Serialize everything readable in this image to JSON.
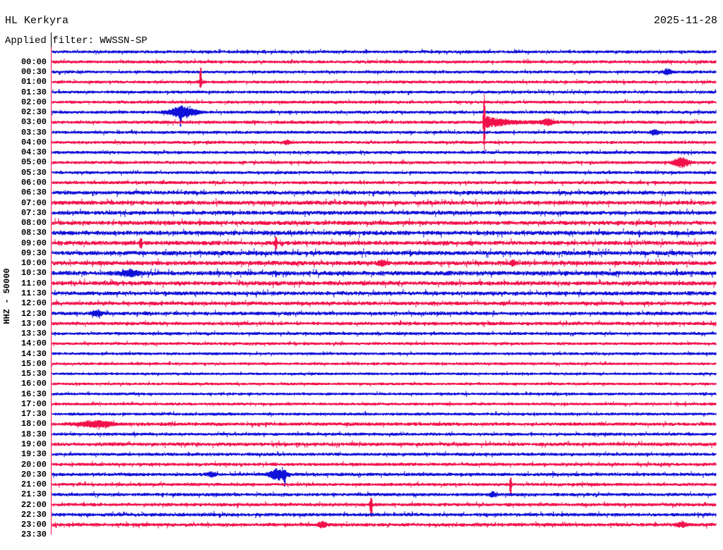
{
  "header": {
    "title": "HL Kerkyra",
    "date": "2025-11-28",
    "filter_label": "Applied filter: WWSSN-SP"
  },
  "axis": {
    "left_label": "HHZ - 50000"
  },
  "colors": {
    "trace_red": "#f2114b",
    "trace_blue": "#0f10d8",
    "text": "#000000",
    "background": "#ffffff",
    "plot_border": "#f2114b",
    "header_separator": "#000000"
  },
  "chart_data": {
    "type": "helicorder",
    "station": "HL Kerkyra",
    "date": "2025-11-28",
    "channel_scale_label": "HHZ - 50000",
    "filter": "WWSSN-SP",
    "minutes_per_row": 30,
    "legend_position": "none",
    "grid": false,
    "time_labels": [
      "00:00",
      "00:30",
      "01:00",
      "01:30",
      "02:00",
      "02:30",
      "03:00",
      "03:30",
      "04:00",
      "04:30",
      "05:00",
      "05:30",
      "06:00",
      "06:30",
      "07:00",
      "07:30",
      "08:00",
      "08:30",
      "09:00",
      "09:30",
      "10:00",
      "10:30",
      "11:00",
      "11:30",
      "12:00",
      "12:30",
      "13:00",
      "13:30",
      "14:00",
      "14:30",
      "15:00",
      "15:30",
      "16:00",
      "16:30",
      "17:00",
      "17:30",
      "18:00",
      "18:30",
      "19:00",
      "19:30",
      "20:00",
      "20:30",
      "21:00",
      "21:30",
      "22:00",
      "22:30",
      "23:00",
      "23:30"
    ],
    "traces": [
      {
        "row": 0,
        "color": "blue",
        "noise": 1.6,
        "events": []
      },
      {
        "row": 1,
        "color": "red",
        "noise": 1.6,
        "events": []
      },
      {
        "row": 2,
        "color": "blue",
        "noise": 1.5,
        "events": [
          {
            "shape": "burst",
            "t": 27.8,
            "a": 4,
            "w": 4
          }
        ]
      },
      {
        "row": 3,
        "color": "red",
        "noise": 1.5,
        "events": [
          {
            "shape": "spike",
            "t": 6.7,
            "au": 18,
            "ad": 5,
            "w": 1.3
          },
          {
            "shape": "burst",
            "t": 6.7,
            "a": 2.5,
            "w": 3
          }
        ]
      },
      {
        "row": 4,
        "color": "blue",
        "noise": 1.5,
        "events": []
      },
      {
        "row": 5,
        "color": "red",
        "noise": 1.5,
        "events": []
      },
      {
        "row": 6,
        "color": "blue",
        "noise": 1.6,
        "events": [
          {
            "shape": "burst",
            "t": 5.9,
            "a": 8,
            "w": 13
          },
          {
            "shape": "spike",
            "t": 5.8,
            "au": 2,
            "ad": 14,
            "w": 1
          }
        ]
      },
      {
        "row": 7,
        "color": "red",
        "noise": 1.7,
        "events": [
          {
            "shape": "quake",
            "t": 19.5,
            "a": 30,
            "w": 1.3,
            "coda_a": 9,
            "coda_len": 28
          },
          {
            "shape": "burst",
            "t": 22.4,
            "a": 4,
            "w": 6
          }
        ]
      },
      {
        "row": 8,
        "color": "blue",
        "noise": 1.6,
        "events": [
          {
            "shape": "burst",
            "t": 27.2,
            "a": 3.5,
            "w": 4
          }
        ]
      },
      {
        "row": 9,
        "color": "red",
        "noise": 1.5,
        "events": [
          {
            "shape": "burst",
            "t": 10.6,
            "a": 3,
            "w": 3
          }
        ]
      },
      {
        "row": 10,
        "color": "blue",
        "noise": 1.6,
        "events": []
      },
      {
        "row": 11,
        "color": "red",
        "noise": 1.6,
        "events": [
          {
            "shape": "burst",
            "t": 28.4,
            "a": 7,
            "w": 7
          }
        ]
      },
      {
        "row": 12,
        "color": "blue",
        "noise": 1.6,
        "events": []
      },
      {
        "row": 13,
        "color": "red",
        "noise": 1.8,
        "events": []
      },
      {
        "row": 14,
        "color": "blue",
        "noise": 2.2,
        "events": []
      },
      {
        "row": 15,
        "color": "red",
        "noise": 2.4,
        "events": []
      },
      {
        "row": 16,
        "color": "blue",
        "noise": 2.3,
        "events": []
      },
      {
        "row": 17,
        "color": "red",
        "noise": 2.5,
        "events": []
      },
      {
        "row": 18,
        "color": "blue",
        "noise": 2.6,
        "events": []
      },
      {
        "row": 19,
        "color": "red",
        "noise": 2.5,
        "events": [
          {
            "shape": "spike",
            "t": 4.0,
            "au": 6,
            "ad": 6,
            "w": 1.5
          },
          {
            "shape": "spike",
            "t": 10.1,
            "au": 7,
            "ad": 7,
            "w": 1.5
          }
        ]
      },
      {
        "row": 20,
        "color": "blue",
        "noise": 2.6,
        "events": []
      },
      {
        "row": 21,
        "color": "red",
        "noise": 2.5,
        "events": [
          {
            "shape": "burst",
            "t": 14.9,
            "a": 4,
            "w": 4
          },
          {
            "shape": "burst",
            "t": 20.8,
            "a": 3.5,
            "w": 3
          }
        ]
      },
      {
        "row": 22,
        "color": "blue",
        "noise": 2.6,
        "events": [
          {
            "shape": "burst",
            "t": 3.5,
            "a": 4.5,
            "w": 9
          }
        ]
      },
      {
        "row": 23,
        "color": "red",
        "noise": 2.5,
        "events": []
      },
      {
        "row": 24,
        "color": "blue",
        "noise": 2.3,
        "events": []
      },
      {
        "row": 25,
        "color": "red",
        "noise": 2.1,
        "events": []
      },
      {
        "row": 26,
        "color": "blue",
        "noise": 2.0,
        "events": [
          {
            "shape": "burst",
            "t": 2.0,
            "a": 4,
            "w": 5
          }
        ]
      },
      {
        "row": 27,
        "color": "red",
        "noise": 1.9,
        "events": []
      },
      {
        "row": 28,
        "color": "blue",
        "noise": 1.6,
        "events": []
      },
      {
        "row": 29,
        "color": "red",
        "noise": 1.5,
        "events": []
      },
      {
        "row": 30,
        "color": "blue",
        "noise": 1.4,
        "events": []
      },
      {
        "row": 31,
        "color": "red",
        "noise": 1.4,
        "events": []
      },
      {
        "row": 32,
        "color": "blue",
        "noise": 1.3,
        "events": []
      },
      {
        "row": 33,
        "color": "red",
        "noise": 1.3,
        "events": []
      },
      {
        "row": 34,
        "color": "blue",
        "noise": 1.4,
        "events": []
      },
      {
        "row": 35,
        "color": "red",
        "noise": 1.4,
        "events": []
      },
      {
        "row": 36,
        "color": "blue",
        "noise": 1.5,
        "events": []
      },
      {
        "row": 37,
        "color": "red",
        "noise": 1.9,
        "events": [
          {
            "shape": "burst",
            "t": 2.0,
            "a": 4.5,
            "w": 16
          }
        ]
      },
      {
        "row": 38,
        "color": "blue",
        "noise": 1.6,
        "events": []
      },
      {
        "row": 39,
        "color": "red",
        "noise": 2.0,
        "events": []
      },
      {
        "row": 40,
        "color": "blue",
        "noise": 1.7,
        "events": []
      },
      {
        "row": 41,
        "color": "red",
        "noise": 1.7,
        "events": []
      },
      {
        "row": 42,
        "color": "blue",
        "noise": 1.8,
        "events": [
          {
            "shape": "burst",
            "t": 10.2,
            "a": 8,
            "w": 8
          },
          {
            "shape": "spike",
            "t": 10.5,
            "au": 2,
            "ad": 12,
            "w": 1.2
          },
          {
            "shape": "burst",
            "t": 7.2,
            "a": 3,
            "w": 4
          }
        ]
      },
      {
        "row": 43,
        "color": "red",
        "noise": 1.7,
        "events": [
          {
            "shape": "spike",
            "t": 20.7,
            "au": 8,
            "ad": 12,
            "w": 1.3
          }
        ]
      },
      {
        "row": 44,
        "color": "blue",
        "noise": 1.8,
        "events": [
          {
            "shape": "burst",
            "t": 19.9,
            "a": 4,
            "w": 3
          }
        ]
      },
      {
        "row": 45,
        "color": "red",
        "noise": 1.8,
        "events": [
          {
            "shape": "spike",
            "t": 14.4,
            "au": 6,
            "ad": 13,
            "w": 1.4
          },
          {
            "shape": "burst",
            "t": 14.4,
            "a": 3,
            "w": 2
          }
        ]
      },
      {
        "row": 46,
        "color": "blue",
        "noise": 1.9,
        "events": []
      },
      {
        "row": 47,
        "color": "red",
        "noise": 2.0,
        "events": [
          {
            "shape": "burst",
            "t": 12.2,
            "a": 4,
            "w": 4
          },
          {
            "shape": "burst",
            "t": 28.4,
            "a": 3,
            "w": 6
          }
        ]
      }
    ]
  }
}
